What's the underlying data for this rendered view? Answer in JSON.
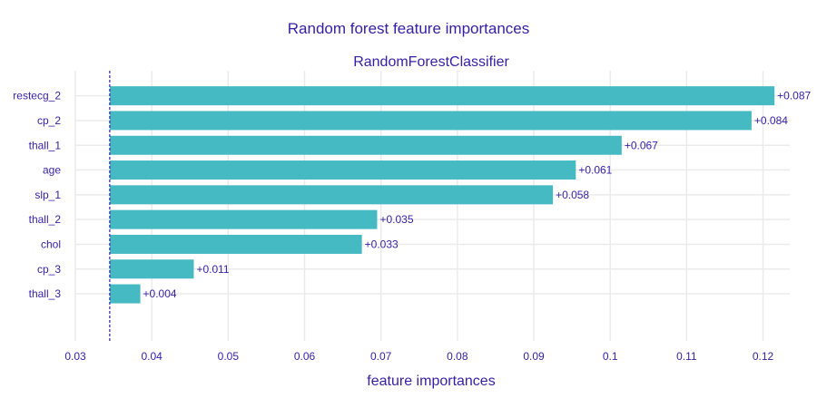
{
  "title": "Random forest feature importances",
  "chart_data": {
    "type": "bar",
    "orientation": "horizontal",
    "subtitle": "RandomForestClassifier",
    "xlabel": "feature importances",
    "ylabel": "",
    "baseline": 0.0345,
    "xlim": [
      0.03,
      0.1235
    ],
    "xticks": [
      0.03,
      0.04,
      0.05,
      0.06,
      0.07,
      0.08,
      0.09,
      0.1,
      0.11,
      0.12
    ],
    "xtick_labels": [
      "0.03",
      "0.04",
      "0.05",
      "0.06",
      "0.07",
      "0.08",
      "0.09",
      "0.1",
      "0.11",
      "0.12"
    ],
    "categories": [
      "restecg_2",
      "cp_2",
      "thall_1",
      "age",
      "slp_1",
      "thall_2",
      "chol",
      "cp_3",
      "thall_3"
    ],
    "values": [
      0.087,
      0.084,
      0.067,
      0.061,
      0.058,
      0.035,
      0.033,
      0.011,
      0.004
    ],
    "value_labels": [
      "+0.087",
      "+0.084",
      "+0.067",
      "+0.061",
      "+0.058",
      "+0.035",
      "+0.033",
      "+0.011",
      "+0.004"
    ],
    "bar_color": "#46bac2",
    "text_color": "#371ea3",
    "grid": true
  }
}
